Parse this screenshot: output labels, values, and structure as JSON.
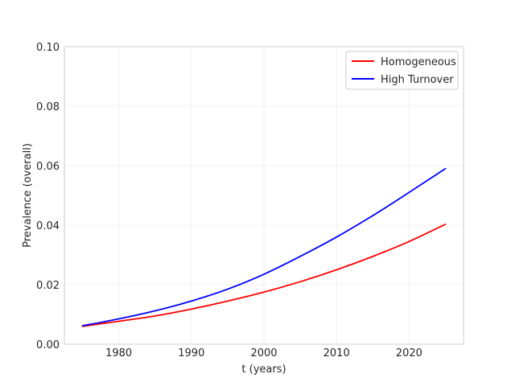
{
  "chart_data": {
    "type": "line",
    "xlabel": "t (years)",
    "ylabel": "Prevalence (overall)",
    "xlim": [
      1972.5,
      2027.5
    ],
    "ylim": [
      0.0,
      0.1
    ],
    "xticks": [
      1980,
      1990,
      2000,
      2010,
      2020
    ],
    "xtick_labels": [
      "1980",
      "1990",
      "2000",
      "2010",
      "2020"
    ],
    "yticks": [
      0.0,
      0.02,
      0.04,
      0.06,
      0.08,
      0.1
    ],
    "ytick_labels": [
      "0.00",
      "0.02",
      "0.04",
      "0.06",
      "0.08",
      "0.10"
    ],
    "grid": true,
    "legend_position": "top-right",
    "series": [
      {
        "name": "Homogeneous",
        "color": "#ff0000",
        "x": [
          1975,
          1980,
          1985,
          1990,
          1995,
          2000,
          2005,
          2010,
          2015,
          2020,
          2025
        ],
        "y": [
          0.006,
          0.0077,
          0.0095,
          0.0118,
          0.0145,
          0.0175,
          0.021,
          0.025,
          0.0295,
          0.0345,
          0.0403
        ]
      },
      {
        "name": "High Turnover",
        "color": "#0000ff",
        "x": [
          1975,
          1980,
          1985,
          1990,
          1995,
          2000,
          2005,
          2010,
          2015,
          2020,
          2025
        ],
        "y": [
          0.0062,
          0.0085,
          0.0112,
          0.0145,
          0.0185,
          0.0235,
          0.0295,
          0.036,
          0.0432,
          0.051,
          0.059
        ]
      }
    ]
  }
}
